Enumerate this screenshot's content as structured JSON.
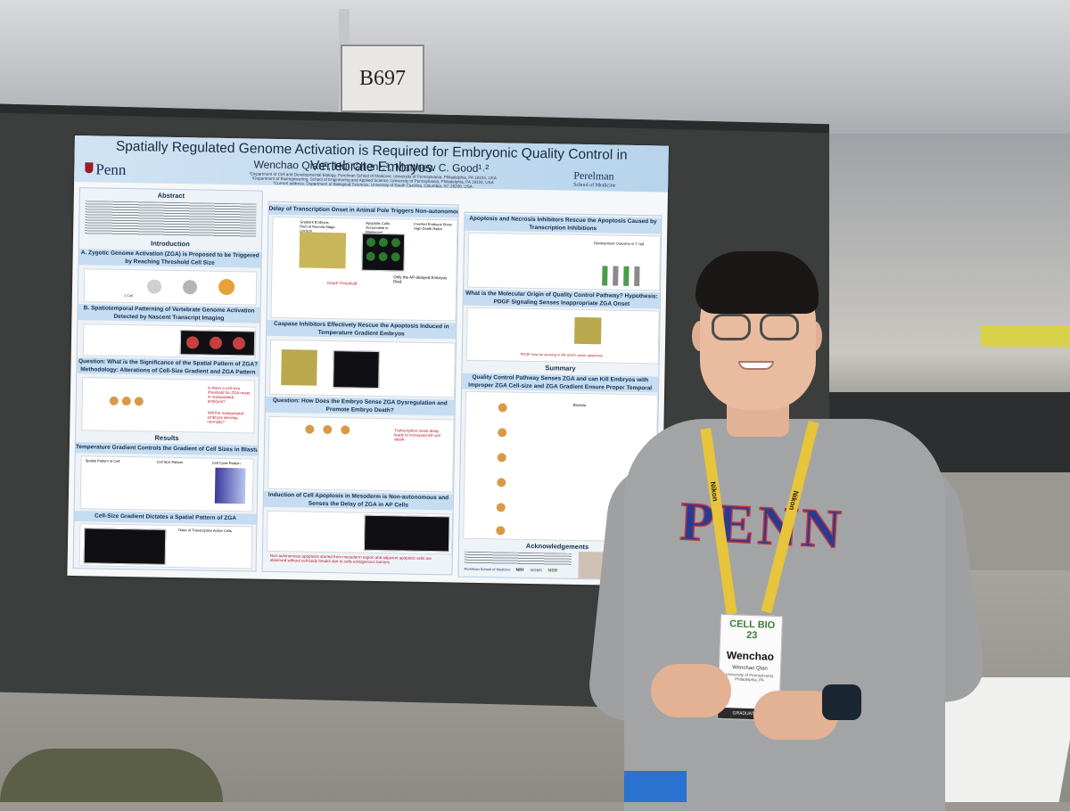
{
  "booth": {
    "number": "B697"
  },
  "poster": {
    "title": "Spatially Regulated Genome Activation is Required for Embryonic Quality Control in Vertebrate Embryos",
    "authors": "Wenchao Qian¹, Hui Chen¹˒³, Matthew C. Good¹˒²",
    "affiliations": [
      "¹Department of Cell and Developmental Biology, Perelman School of Medicine, University of Pennsylvania, Philadelphia, PA 19104, USA",
      "²Department of Bioengineering, School of Engineering and Applied Science, University of Pennsylvania, Philadelphia, PA 19104, USA",
      "³Current address: Department of Biological Sciences, University of South Carolina, Columbia, SC 29208, USA"
    ],
    "left_logo": "Penn",
    "right_logo_line1": "Perelman",
    "right_logo_line2": "School of Medicine",
    "sections": {
      "abstract": "Abstract",
      "introduction": "Introduction",
      "intro_a": "A. Zygotic Genome Activation (ZGA) is Proposed to be Triggered by Reaching Threshold Cell Size",
      "intro_b": "B. Spatiotemporal Patterning of Vertebrate Genome Activation Detected by Nascent Transcript Imaging",
      "question1": "Question: What is the Significance of the Spatial Pattern of ZGA? Methodology: Alterations of Cell-Size Gradient and ZGA Pattern",
      "results": "Results",
      "temp_gradient": "Temperature Gradient Controls the Gradient of Cell Sizes in Blastula Embryos",
      "cell_size_gradient": "Cell-Size Gradient Dictates a Spatial Pattern of ZGA",
      "delay": "Delay of Transcription Onset in Animal Pole Triggers Non-autonomous Apoptosis",
      "caspase": "Caspase Inhibitors Effectively Rescue the Apoptosis Induced in Temperature Gradient Embryos",
      "question2": "Question: How Does the Embryo Sense ZGA Dysregulation and Promote Embryo Death?",
      "induction": "Induction of Cell Apoptosis in Mesoderm is Non-autonomous and Senses the Delay of ZGA in AP Cells",
      "apoptosis_rescue": "Apoptosis and Necrosis Inhibitors Rescue the Apoptosis Caused by Transcription Inhibitions",
      "molecular_origin": "What is the Molecular Origin of Quality Control Pathway? Hypothesis: PDGF Signaling Senses Inappropriate ZGA Onset",
      "summary": "Summary",
      "summary_sub": "Quality Control Pathway Senses ZGA and can Kill Embryos with Improper ZGA Cell-size and ZGA Gradient Ensure Proper Temporal Ordering of Zygotic Expression",
      "acknowledgements": "Acknowledgements"
    },
    "notes": {
      "n1": "Is there a cell size threshold for ZGA onset in manipulated embryos?",
      "n2": "Will the manipulated embryos develop normally?",
      "n3": "Non-autonomous apoptosis started from mesoderm region and adjacent apoptotic cells are observed without cell-body breaks due to cells endogenous barriers",
      "n4": "Transcription onset delay leads to increased AP cell death"
    },
    "fig_labels": {
      "one_cell": "1 Cell",
      "blastula": "Blastula",
      "cell_size_plot": "Cell Size Pattern",
      "cell_cycle_plot": "Cell Cycle Pattern",
      "spatial_pattern": "Spatial Pattern of Cell",
      "death_threshold": "Death Threshold",
      "ratio": "Ratio of Transcription Active Cells",
      "gradient_embryo": "Gradient Embryos Died at Neurula Stage (24 hpf)",
      "apoptotic_cells": "Apoptotic Cells Accumulate in Blastocoel",
      "inverted": "Inverted Embryos Show High Death Rates",
      "only_ap": "Only the AP-delayed Embryos Died",
      "development": "Development Outcome in T. hpf",
      "pdgf_note": "PDGF may be sensing in AP which cause apoptosis"
    },
    "sponsors": [
      "Perelman School of Medicine",
      "NIH",
      "NIGMS",
      "NSR"
    ]
  },
  "person": {
    "shirt_text": "PENN",
    "lanyard_text": "Nikon",
    "badge": {
      "event": "CELL BIO 23",
      "first_name": "Wenchao",
      "full_name": "Wenchao Qian",
      "school": "University of Pennsylvania",
      "location": "Philadelphia, PA",
      "ribbon": "GRADUATE ST"
    }
  },
  "colors": {
    "poster_header": "#b7d4ec",
    "section_bar": "#c6dcf0",
    "penn_blue": "#2a3b8f",
    "penn_red": "#c23a44",
    "lanyard_yellow": "#e7c53a"
  }
}
